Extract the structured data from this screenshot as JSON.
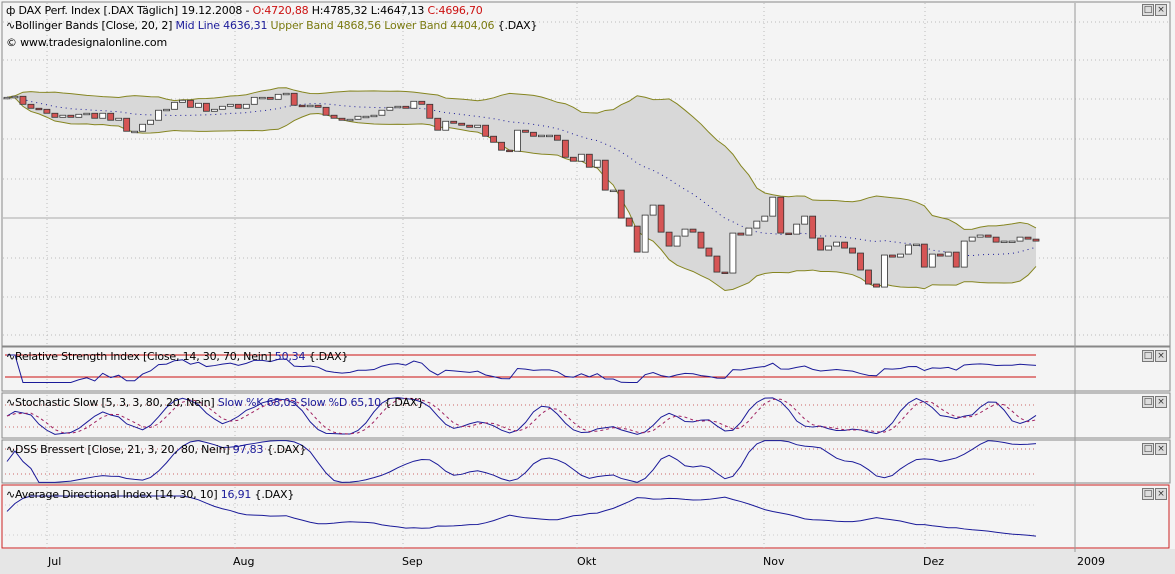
{
  "header": {
    "symbol_icon": "candlestick-icon",
    "instrument": "DAX Perf. Index [.DAX  Täglich] 19.12.2008 -",
    "open": "O:4720,88",
    "high": "H:4785,32",
    "low": "L:4647,13",
    "close": "C:4696,70",
    "bollinger_label": "Bollinger Bands [Close, 20, 2]",
    "bollinger_mid": "Mid Line 4636,31",
    "bollinger_upper": "Upper Band 4868,56",
    "bollinger_lower": "Lower Band 4404,06",
    "bollinger_suffix": "{.DAX}",
    "copyright": "© www.tradesignalonline.com"
  },
  "indicators": {
    "rsi": {
      "label": "Relative Strength Index [Close, 14, 30, 70, Nein]",
      "value": "50,34",
      "suffix": "{.DAX}"
    },
    "stoch": {
      "label": "Stochastic Slow [5, 3, 3, 80, 20, Nein]",
      "value": "Slow %K 68,03 Slow %D 65,10",
      "suffix": "{.DAX}"
    },
    "dss": {
      "label": "DSS Bressert [Close, 21, 3, 20, 80, Nein]",
      "value": "97,83",
      "suffix": "{.DAX}"
    },
    "adx": {
      "label": "Average Directional Index [14, 30, 10]",
      "value": "16,91",
      "suffix": "{.DAX}"
    }
  },
  "panel_buttons": {
    "maximize": "□",
    "close": "×"
  },
  "x_axis": {
    "labels": [
      "Jul",
      "Aug",
      "Sep",
      "Okt",
      "Nov",
      "Dez",
      "2009"
    ]
  },
  "colors": {
    "bull": "#ffffff",
    "bear": "#d65555",
    "band_fill": "#d8d8d8",
    "band_line": "#858520",
    "mid_line": "#1a1a99",
    "indicator_line": "#1a1a99",
    "level_line": "#cc1111"
  },
  "chart_data": {
    "type": "candlestick",
    "ylim": [
      3490,
      6940
    ],
    "bollinger": {
      "period": 20,
      "deviations": 2
    },
    "closes": [
      6367,
      6379,
      6286,
      6240,
      6228,
      6182,
      6135,
      6159,
      6135,
      6170,
      6182,
      6124,
      6182,
      6101,
      6124,
      5973,
      5973,
      6054,
      6101,
      6217,
      6228,
      6309,
      6333,
      6251,
      6298,
      6205,
      6228,
      6263,
      6286,
      6240,
      6286,
      6367,
      6367,
      6344,
      6402,
      6414,
      6275,
      6263,
      6275,
      6251,
      6159,
      6124,
      6101,
      6112,
      6147,
      6147,
      6159,
      6217,
      6251,
      6263,
      6240,
      6321,
      6286,
      6124,
      5985,
      6089,
      6066,
      6043,
      6019,
      6043,
      5915,
      5845,
      5753,
      5741,
      5985,
      5961,
      5915,
      5927,
      5927,
      5869,
      5671,
      5625,
      5706,
      5555,
      5637,
      5289,
      5289,
      4964,
      4871,
      4569,
      4999,
      5115,
      4801,
      4639,
      4755,
      4836,
      4801,
      4616,
      4523,
      4337,
      4326,
      4790,
      4767,
      4848,
      4929,
      4987,
      5207,
      4790,
      4778,
      4894,
      4987,
      4732,
      4593,
      4639,
      4685,
      4616,
      4558,
      4361,
      4198,
      4163,
      4535,
      4511,
      4546,
      4651,
      4662,
      4395,
      4546,
      4523,
      4569,
      4395,
      4697,
      4743,
      4767,
      4743,
      4685,
      4697,
      4697,
      4743,
      4720,
      4697
    ]
  }
}
